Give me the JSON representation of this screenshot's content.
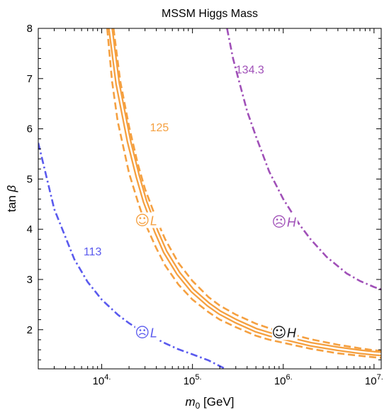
{
  "chart_data": {
    "type": "line",
    "title": "MSSM Higgs Mass",
    "xlabel": {
      "base": "m",
      "sub": "0",
      "unit": " [GeV]"
    },
    "ylabel": {
      "prefix": "tan ",
      "symbol": "β"
    },
    "x_scale": "log",
    "xlim": [
      2000,
      12000000
    ],
    "ylim": [
      1.22,
      8
    ],
    "x_ticks": [
      {
        "value": 10000,
        "base": "10",
        "exp": "4."
      },
      {
        "value": 100000,
        "base": "10",
        "exp": "5."
      },
      {
        "value": 1000000,
        "base": "10",
        "exp": "6."
      },
      {
        "value": 10000000,
        "base": "10",
        "exp": "7."
      }
    ],
    "y_ticks": [
      "2",
      "3",
      "4",
      "5",
      "6",
      "7",
      "8"
    ],
    "grid": false,
    "series": [
      {
        "label": "113",
        "color": "#5a5aee",
        "style": "dashdot",
        "label_at": {
          "x": 6300,
          "y": 3.48
        },
        "x": [
          2000,
          3000,
          5000,
          7000,
          10000,
          15000,
          20000,
          30000,
          50000,
          70000,
          100000,
          150000,
          230000
        ],
        "y": [
          5.72,
          4.4,
          3.4,
          2.95,
          2.6,
          2.3,
          2.13,
          1.93,
          1.73,
          1.61,
          1.51,
          1.39,
          1.22
        ]
      },
      {
        "label": "125",
        "color": "#f5a040",
        "style": "solid-band",
        "label_at": {
          "x": 34000,
          "y": 5.95
        },
        "x": [
          12500,
          15000,
          20000,
          25000,
          30000,
          40000,
          50000,
          70000,
          100000,
          150000,
          200000,
          300000,
          500000,
          700000,
          1000000,
          2000000,
          4000000,
          7000000,
          10000000,
          12000000
        ],
        "y": [
          8.0,
          6.9,
          5.75,
          5.05,
          4.55,
          3.95,
          3.55,
          3.12,
          2.78,
          2.5,
          2.34,
          2.17,
          1.99,
          1.91,
          1.84,
          1.71,
          1.62,
          1.56,
          1.53,
          1.52
        ],
        "band_upper": {
          "x": [
            13500,
            16000,
            20000,
            25000,
            30000,
            40000,
            50000,
            70000,
            100000,
            150000,
            200000,
            300000,
            500000,
            700000,
            1000000,
            2000000,
            4000000,
            7000000,
            10000000,
            12000000
          ],
          "y": [
            8.0,
            6.95,
            6.05,
            5.3,
            4.8,
            4.2,
            3.8,
            3.33,
            2.97,
            2.65,
            2.48,
            2.3,
            2.12,
            2.03,
            1.95,
            1.81,
            1.7,
            1.63,
            1.59,
            1.58
          ]
        },
        "band_lower": {
          "x": [
            11500,
            13000,
            15000,
            20000,
            25000,
            30000,
            40000,
            50000,
            70000,
            100000,
            150000,
            200000,
            300000,
            500000,
            700000,
            1000000,
            2000000,
            4000000,
            7000000,
            10000000,
            12000000
          ],
          "y": [
            8.0,
            6.95,
            6.15,
            5.12,
            4.55,
            4.12,
            3.62,
            3.28,
            2.9,
            2.6,
            2.35,
            2.2,
            2.05,
            1.88,
            1.8,
            1.74,
            1.62,
            1.53,
            1.48,
            1.45,
            1.44
          ]
        }
      },
      {
        "label": "134.3",
        "color": "#a050b8",
        "style": "dashdot",
        "label_at": {
          "x": 300000,
          "y": 7.1
        },
        "x": [
          240000,
          280000,
          320000,
          400000,
          500000,
          700000,
          1000000,
          1500000,
          2000000,
          3000000,
          5000000,
          7000000,
          10000000,
          12000000
        ],
        "y": [
          8.0,
          7.4,
          7.0,
          6.35,
          5.85,
          5.15,
          4.6,
          4.1,
          3.8,
          3.45,
          3.12,
          2.97,
          2.85,
          2.8
        ]
      }
    ],
    "markers": [
      {
        "x": 28000,
        "y": 4.18,
        "glyph": "☺",
        "letter": "L",
        "color": "#f5a040"
      },
      {
        "x": 28000,
        "y": 1.95,
        "glyph": "☹",
        "letter": "L",
        "color": "#5a5aee"
      },
      {
        "x": 900000,
        "y": 4.15,
        "glyph": "☹",
        "letter": "H",
        "color": "#a050b8"
      },
      {
        "x": 900000,
        "y": 1.95,
        "glyph": "☺",
        "letter": "H",
        "color": "#111111"
      }
    ]
  }
}
